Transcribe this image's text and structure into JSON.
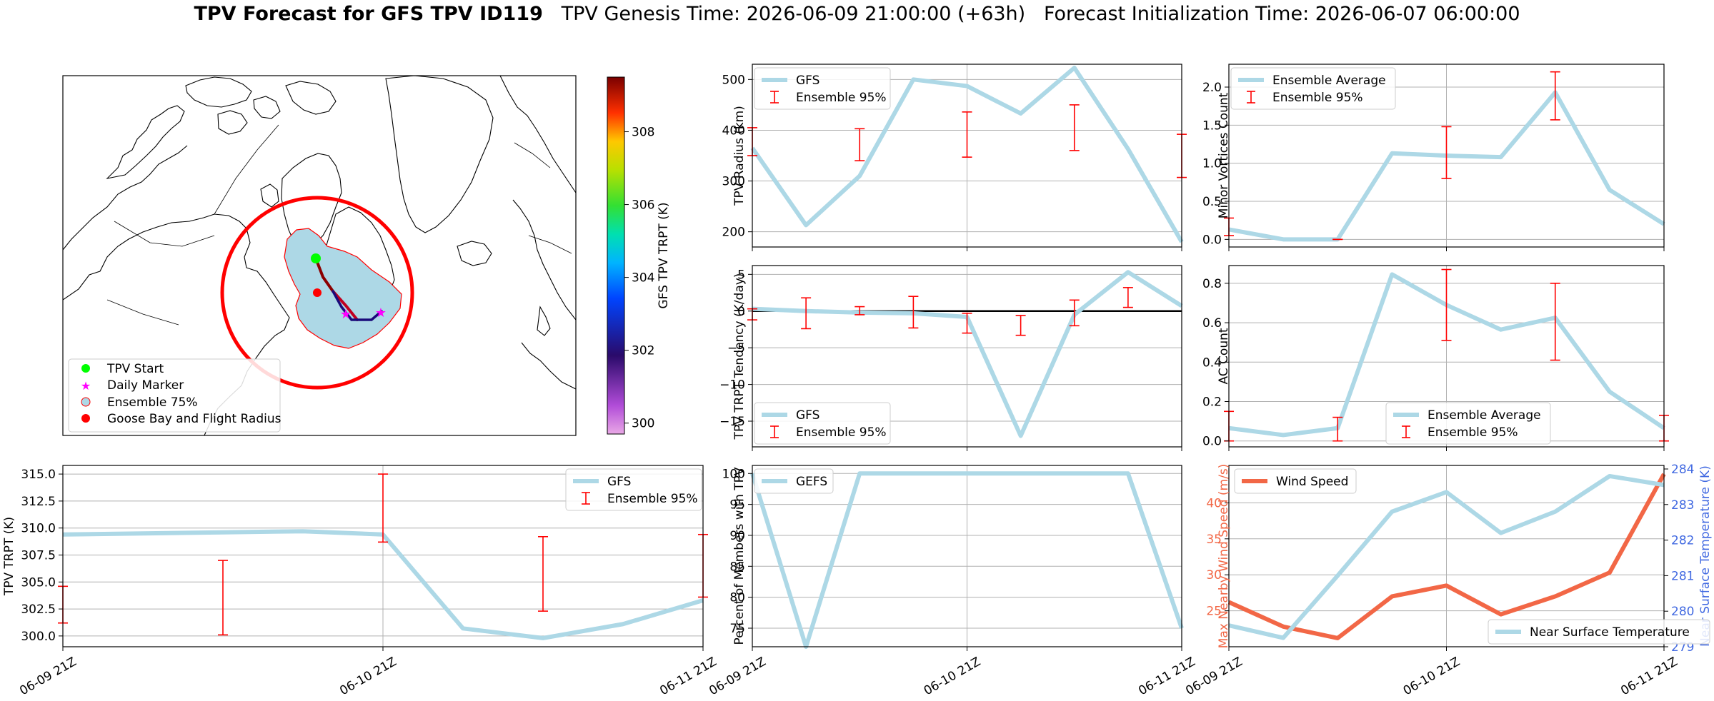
{
  "title": {
    "main": "TPV Forecast for GFS TPV ID119",
    "genesis": "TPV Genesis Time: 2026-06-09 21:00:00 (+63h)",
    "init": "Forecast Initialization Time: 2026-06-07 06:00:00"
  },
  "colors": {
    "gfs_line": "#add8e6",
    "errorbar": "#ff0000",
    "wind_line": "#f26746",
    "temp_axis": "#4169e1",
    "grid": "#b0b0b0",
    "ensemble_fill": "#add8e6",
    "flight_radius": "#ff0000"
  },
  "map": {
    "legend": [
      "TPV Start",
      "Daily Marker",
      "Ensemble 75%",
      "Goose Bay and Flight Radius"
    ],
    "colorbar": {
      "label": "GFS TPV TRPT (K)",
      "range": [
        299.7,
        309.5
      ],
      "ticks": [
        "300",
        "302",
        "304",
        "306",
        "308"
      ]
    }
  },
  "chart_data": [
    {
      "id": "radius",
      "type": "line",
      "ylabel": "TPV Radius (km)",
      "xlim": [
        0,
        48
      ],
      "ylim": [
        170,
        530
      ],
      "yticks": [
        200,
        300,
        400,
        500
      ],
      "ytick_labels": [
        "200",
        "300",
        "400",
        "500"
      ],
      "xtick_labels": [],
      "legend": [
        "GFS",
        "Ensemble 95%"
      ],
      "legend_position": "upper-left",
      "series": [
        {
          "name": "GFS",
          "x": [
            0,
            6,
            12,
            18,
            24,
            30,
            36,
            42,
            48
          ],
          "y": [
            365,
            213,
            310,
            500,
            487,
            433,
            523,
            363,
            180
          ]
        }
      ],
      "errorbars": [
        {
          "x": 0,
          "low": 350,
          "high": 405
        },
        {
          "x": 12,
          "low": 340,
          "high": 403
        },
        {
          "x": 24,
          "low": 347,
          "high": 436
        },
        {
          "x": 36,
          "low": 360,
          "high": 450
        },
        {
          "x": 48,
          "low": 307,
          "high": 392
        }
      ]
    },
    {
      "id": "minor_vortices",
      "type": "line",
      "ylabel": "Minor Vortices Count",
      "xlim": [
        0,
        48
      ],
      "ylim": [
        -0.1,
        2.3
      ],
      "yticks": [
        0.0,
        0.5,
        1.0,
        1.5,
        2.0
      ],
      "ytick_labels": [
        "0.0",
        "0.5",
        "1.0",
        "1.5",
        "2.0"
      ],
      "xtick_labels": [],
      "legend": [
        "Ensemble Average",
        "Ensemble 95%"
      ],
      "legend_position": "upper-left",
      "series": [
        {
          "name": "Ensemble Average",
          "x": [
            0,
            6,
            12,
            18,
            24,
            30,
            36,
            42,
            48
          ],
          "y": [
            0.13,
            0.0,
            0.0,
            1.13,
            1.1,
            1.08,
            1.93,
            0.65,
            0.2
          ]
        }
      ],
      "errorbars": [
        {
          "x": 0,
          "low": 0.05,
          "high": 0.28
        },
        {
          "x": 12,
          "low": 0.0,
          "high": 0.0
        },
        {
          "x": 24,
          "low": 0.8,
          "high": 1.48
        },
        {
          "x": 36,
          "low": 1.57,
          "high": 2.2
        }
      ]
    },
    {
      "id": "tendency",
      "type": "line",
      "ylabel": "TPV TRPT Tendency (K/day)",
      "xlim": [
        0,
        48
      ],
      "ylim": [
        -18.5,
        6.2
      ],
      "yticks": [
        -15,
        -10,
        -5,
        0,
        5
      ],
      "ytick_labels": [
        "−15",
        "−10",
        "−5",
        "0",
        "5"
      ],
      "xtick_labels": [],
      "legend": [
        "GFS",
        "Ensemble 95%"
      ],
      "legend_position": "lower-left",
      "zero_line": true,
      "series": [
        {
          "name": "GFS",
          "x": [
            0,
            6,
            12,
            18,
            24,
            30,
            36,
            42,
            48
          ],
          "y": [
            0.3,
            0.0,
            -0.2,
            -0.3,
            -0.8,
            -17.0,
            -0.5,
            5.3,
            0.7
          ]
        }
      ],
      "errorbars": [
        {
          "x": 0,
          "low": -1.2,
          "high": 0.3
        },
        {
          "x": 6,
          "low": -2.4,
          "high": 1.8
        },
        {
          "x": 12,
          "low": -0.5,
          "high": 0.6
        },
        {
          "x": 18,
          "low": -2.3,
          "high": 2.0
        },
        {
          "x": 24,
          "low": -3.0,
          "high": -0.3
        },
        {
          "x": 30,
          "low": -3.3,
          "high": -0.6
        },
        {
          "x": 36,
          "low": -2.0,
          "high": 1.5
        },
        {
          "x": 42,
          "low": 0.5,
          "high": 3.2
        }
      ]
    },
    {
      "id": "ac_count",
      "type": "line",
      "ylabel": "AC Count",
      "xlim": [
        0,
        48
      ],
      "ylim": [
        -0.03,
        0.89
      ],
      "yticks": [
        0.0,
        0.2,
        0.4,
        0.6,
        0.8
      ],
      "ytick_labels": [
        "0.0",
        "0.2",
        "0.4",
        "0.6",
        "0.8"
      ],
      "xtick_labels": [],
      "legend": [
        "Ensemble Average",
        "Ensemble 95%"
      ],
      "legend_position": "lower-center",
      "series": [
        {
          "name": "Ensemble Average",
          "x": [
            0,
            6,
            12,
            18,
            24,
            30,
            36,
            42,
            48
          ],
          "y": [
            0.065,
            0.03,
            0.065,
            0.845,
            0.69,
            0.565,
            0.625,
            0.25,
            0.065
          ]
        }
      ],
      "errorbars": [
        {
          "x": 0,
          "low": 0.0,
          "high": 0.15
        },
        {
          "x": 12,
          "low": 0.0,
          "high": 0.12
        },
        {
          "x": 24,
          "low": 0.51,
          "high": 0.87
        },
        {
          "x": 36,
          "low": 0.41,
          "high": 0.8
        },
        {
          "x": 48,
          "low": 0.0,
          "high": 0.13
        }
      ]
    },
    {
      "id": "trpt",
      "type": "line",
      "ylabel": "TPV TRPT (K)",
      "xlim": [
        0,
        48
      ],
      "ylim": [
        299.0,
        315.8
      ],
      "yticks": [
        300.0,
        302.5,
        305.0,
        307.5,
        310.0,
        312.5,
        315.0
      ],
      "ytick_labels": [
        "300.0",
        "302.5",
        "305.0",
        "307.5",
        "310.0",
        "312.5",
        "315.0"
      ],
      "xtick_labels": [
        "06-09 21Z",
        "06-10 21Z",
        "06-11 21Z"
      ],
      "legend": [
        "GFS",
        "Ensemble 95%"
      ],
      "legend_position": "upper-right",
      "series": [
        {
          "name": "GFS",
          "x": [
            0,
            6,
            12,
            18,
            24,
            30,
            36,
            42,
            48
          ],
          "y": [
            309.4,
            309.5,
            309.6,
            309.7,
            309.4,
            300.7,
            299.8,
            301.1,
            303.3
          ]
        }
      ],
      "errorbars": [
        {
          "x": 0,
          "low": 301.2,
          "high": 304.6
        },
        {
          "x": 12,
          "low": 300.1,
          "high": 307.0
        },
        {
          "x": 24,
          "low": 308.7,
          "high": 315.0
        },
        {
          "x": 36,
          "low": 302.3,
          "high": 309.2
        },
        {
          "x": 48,
          "low": 303.6,
          "high": 309.4
        }
      ]
    },
    {
      "id": "percent_members",
      "type": "line",
      "ylabel": "Percent of Members with TPV",
      "xlim": [
        0,
        48
      ],
      "ylim": [
        72.0,
        101.3
      ],
      "yticks": [
        75,
        80,
        85,
        90,
        95,
        100
      ],
      "ytick_labels": [
        "75",
        "80",
        "85",
        "90",
        "95",
        "100"
      ],
      "xtick_labels": [
        "06-09 21Z",
        "06-10 21Z",
        "06-11 21Z"
      ],
      "legend": [
        "GEFS"
      ],
      "legend_position": "upper-left",
      "series": [
        {
          "name": "GEFS",
          "x": [
            0,
            6,
            12,
            18,
            24,
            30,
            36,
            42,
            48
          ],
          "y": [
            100,
            72,
            100,
            100,
            100,
            100,
            100,
            100,
            75
          ]
        }
      ],
      "errorbars": []
    },
    {
      "id": "wind_temp",
      "type": "line",
      "ylabel": "Max Nearby Wind Speed (m/s)",
      "y2label": "Near Surface Temperature (K)",
      "xlim": [
        0,
        48
      ],
      "ylim": [
        20.0,
        45.2
      ],
      "yticks": [
        25,
        30,
        35,
        40
      ],
      "ytick_labels": [
        "25",
        "30",
        "35",
        "40"
      ],
      "y2lim": [
        279.0,
        284.1
      ],
      "y2ticks": [
        279,
        280,
        281,
        282,
        283,
        284
      ],
      "y2tick_labels": [
        "279",
        "280",
        "281",
        "282",
        "283",
        "284"
      ],
      "xtick_labels": [
        "06-09 21Z",
        "06-10 21Z",
        "06-11 21Z"
      ],
      "legend": [
        "Wind Speed",
        "Near Surface Temperature"
      ],
      "legend_position": "upper-left / lower-right",
      "series": [
        {
          "name": "Wind Speed",
          "axis": "left",
          "x": [
            0,
            6,
            12,
            18,
            24,
            30,
            36,
            42,
            48
          ],
          "y": [
            26.2,
            22.8,
            21.2,
            27.0,
            28.5,
            24.5,
            27.0,
            30.3,
            44.0
          ]
        },
        {
          "name": "Near Surface Temperature",
          "axis": "right",
          "x": [
            0,
            6,
            12,
            18,
            24,
            30,
            36,
            42,
            48
          ],
          "y": [
            279.6,
            279.25,
            281.0,
            282.8,
            283.35,
            282.2,
            282.8,
            283.8,
            283.55
          ]
        }
      ],
      "errorbars": []
    }
  ]
}
